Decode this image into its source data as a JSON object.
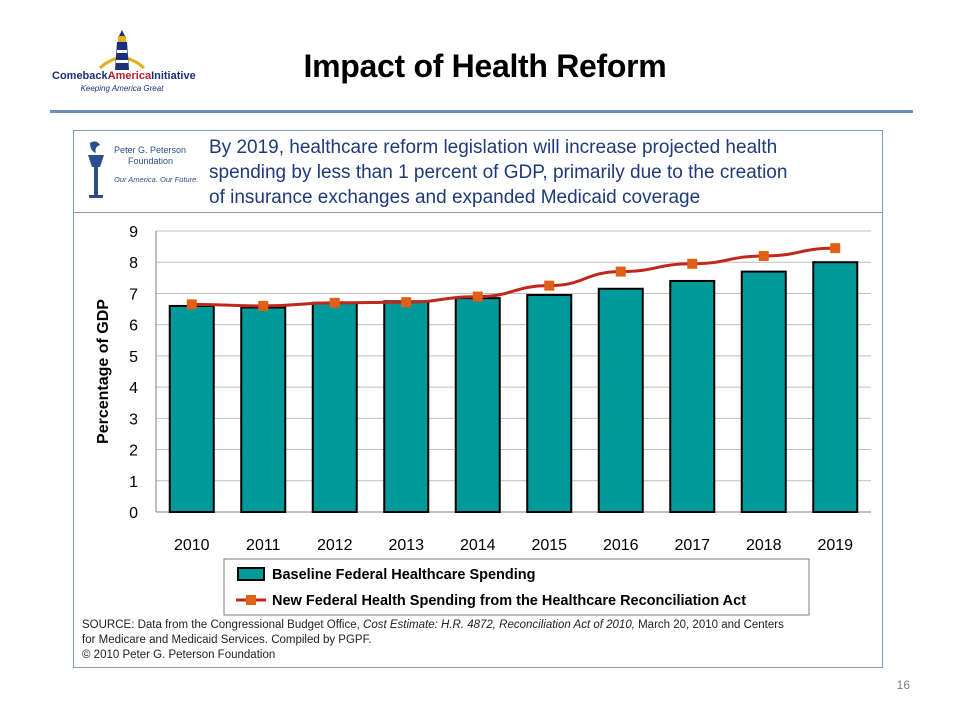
{
  "slide": {
    "title": "Impact of Health Reform",
    "page_number": "16"
  },
  "logo_cai": {
    "name_part1": "Comeback",
    "name_part2": "America",
    "name_part3": "Initiative",
    "tagline": "Keeping America Great"
  },
  "logo_pgpf": {
    "line1": "Peter G. Peterson",
    "line2": "Foundation",
    "motto": "Our America. Our Future."
  },
  "headline": {
    "line1": "By 2019, healthcare reform legislation will increase projected health",
    "line2": "spending by less than 1 percent of GDP, primarily due to the creation",
    "line3": "of insurance exchanges and expanded Medicaid coverage"
  },
  "source": {
    "line1_prefix": "SOURCE: Data from the Congressional Budget Office, ",
    "line1_cite": "Cost Estimate: H.R. 4872, Reconciliation Act of 2010,",
    "line1_suffix": " March 20, 2010 and Centers",
    "line2": "for Medicare  and Medicaid Services. Compiled by PGPF.",
    "line3": "© 2010 Peter G. Peterson Foundation"
  },
  "chart_data": {
    "type": "bar",
    "categories": [
      "2010",
      "2011",
      "2012",
      "2013",
      "2014",
      "2015",
      "2016",
      "2017",
      "2018",
      "2019"
    ],
    "series": [
      {
        "name": "Baseline Federal Healthcare Spending",
        "type": "bar",
        "values": [
          6.6,
          6.55,
          6.7,
          6.75,
          6.85,
          6.95,
          7.15,
          7.4,
          7.7,
          8.0
        ]
      },
      {
        "name": "New Federal Health Spending from the Healthcare Reconciliation Act",
        "type": "line",
        "values": [
          6.65,
          6.6,
          6.7,
          6.72,
          6.9,
          7.25,
          7.7,
          7.95,
          8.2,
          8.45
        ]
      }
    ],
    "ylabel": "Percentage of GDP",
    "xlabel": "",
    "ylim": [
      0,
      9
    ],
    "yticks": [
      "0",
      "1",
      "2",
      "3",
      "4",
      "5",
      "6",
      "7",
      "8",
      "9"
    ],
    "grid": true,
    "legend_position": "bottom",
    "colors": {
      "bar_fill": "#009999",
      "bar_stroke": "#000000",
      "line": "#c0281b",
      "marker": "#e06018",
      "grid": "#bfbfbf"
    }
  }
}
